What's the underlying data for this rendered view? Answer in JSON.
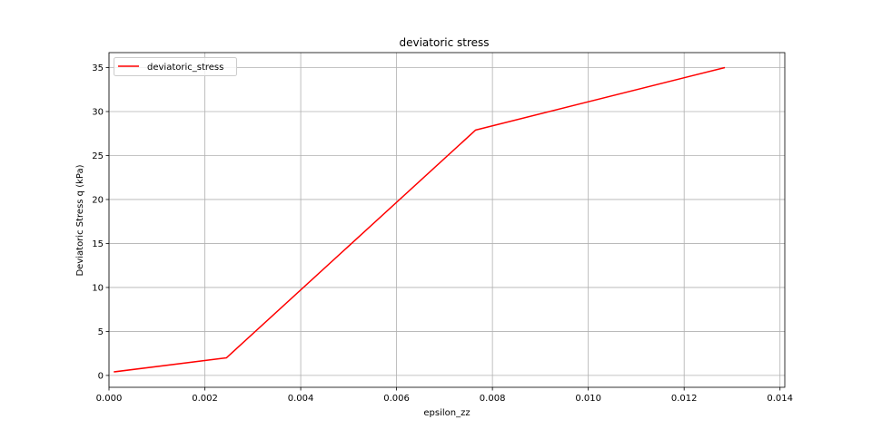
{
  "chart_data": {
    "type": "line",
    "title": "deviatoric stress",
    "xlabel": "epsilon_zz",
    "ylabel": "Deviatoric Stress q (kPa)",
    "xlim": [
      0.0,
      0.0141
    ],
    "ylim": [
      -1.35,
      36.7
    ],
    "xticks": [
      0.0,
      0.002,
      0.004,
      0.006,
      0.008,
      0.01,
      0.012,
      0.014
    ],
    "xtick_labels": [
      "0.000",
      "0.002",
      "0.004",
      "0.006",
      "0.008",
      "0.010",
      "0.012",
      "0.014"
    ],
    "yticks": [
      0,
      5,
      10,
      15,
      20,
      25,
      30,
      35
    ],
    "ytick_labels": [
      "0",
      "5",
      "10",
      "15",
      "20",
      "25",
      "30",
      "35"
    ],
    "grid": true,
    "legend_position": "upper-left",
    "series": [
      {
        "name": "deviatoric_stress",
        "color": "#ff0000",
        "x": [
          0.0001,
          0.00245,
          0.00765,
          0.01285
        ],
        "y": [
          0.4,
          2.0,
          27.9,
          35.0
        ]
      }
    ]
  }
}
